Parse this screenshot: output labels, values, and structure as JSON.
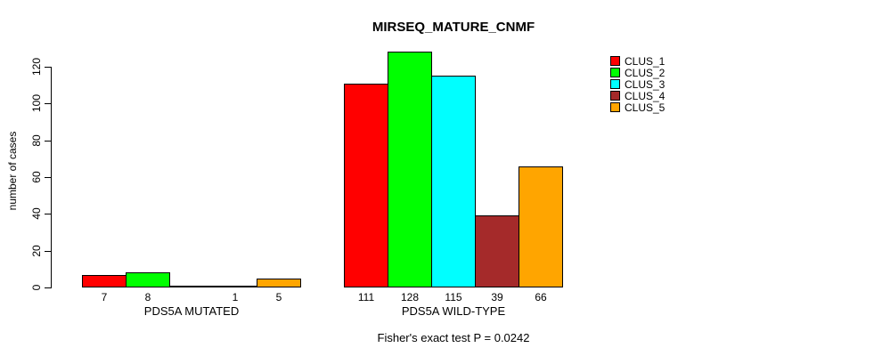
{
  "page": {
    "background": "#FFFFFF"
  },
  "chart_data": {
    "type": "bar",
    "title": "MIRSEQ_MATURE_CNMF",
    "xlabel": "",
    "ylabel": "number of cases",
    "ylim": [
      0,
      120
    ],
    "yticks": [
      0,
      20,
      40,
      60,
      80,
      100,
      120
    ],
    "grid": false,
    "categories": [
      "PDS5A MUTATED",
      "PDS5A WILD-TYPE"
    ],
    "series": [
      {
        "name": "CLUS_1",
        "color": "#FF0000",
        "values": [
          7,
          111
        ]
      },
      {
        "name": "CLUS_2",
        "color": "#00FF00",
        "values": [
          8,
          128
        ]
      },
      {
        "name": "CLUS_3",
        "color": "#00FFFF",
        "values": [
          0,
          115
        ]
      },
      {
        "name": "CLUS_4",
        "color": "#A52A2A",
        "values": [
          1,
          39
        ]
      },
      {
        "name": "CLUS_5",
        "color": "#FFA500",
        "values": [
          5,
          66
        ]
      }
    ],
    "bar_value_labels": [
      [
        "7",
        "8",
        "",
        "1",
        "5"
      ],
      [
        "111",
        "128",
        "115",
        "39",
        "66"
      ]
    ],
    "legend_entries": [
      "CLUS_1",
      "CLUS_2",
      "CLUS_3",
      "CLUS_4",
      "CLUS_5"
    ],
    "legend_position": "top-right",
    "annotation": "Fisher's exact test P = 0.0242",
    "axis_color": "#000000",
    "bar_border_color": "#000000",
    "text_color": "#000000"
  }
}
